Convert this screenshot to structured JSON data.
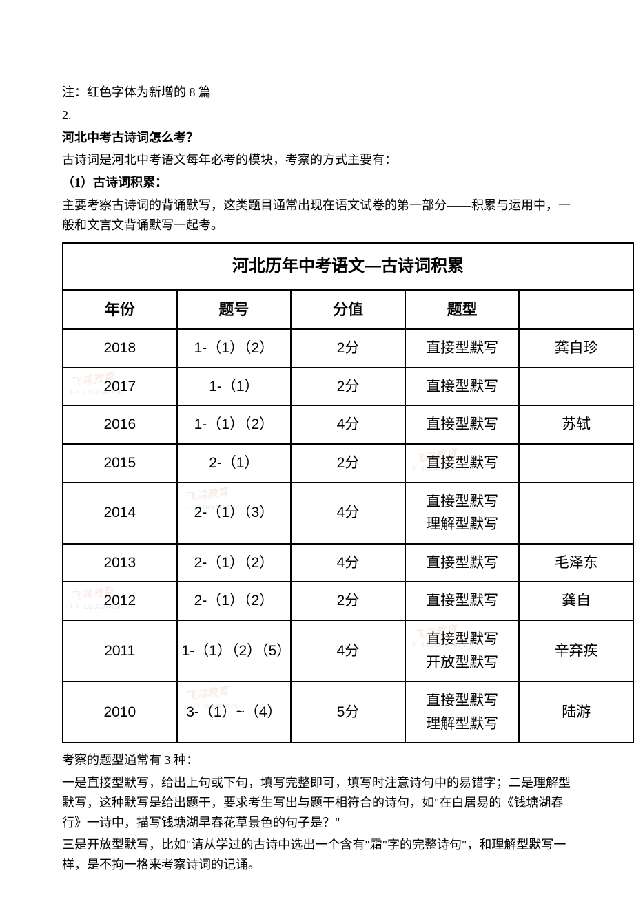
{
  "intro": {
    "note": "注：红色字体为新增的 8 篇",
    "num": "2.",
    "question": "河北中考古诗词怎么考？",
    "desc1": "古诗词是河北中考语文每年必考的模块，考察的方式主要有：",
    "sub1_title": "（1）古诗词积累：",
    "sub1_desc": "主要考察古诗词的背诵默写，这类题目通常出现在语文试卷的第一部分——积累与运用中，一般和文言文背诵默写一起考。"
  },
  "table": {
    "title": "河北历年中考语文—古诗词积累",
    "headers": {
      "year": "年份",
      "num": "题号",
      "score": "分值",
      "type": "题型",
      "last": ""
    },
    "rows": [
      {
        "year": "2018",
        "num": "1-（1）（2）",
        "score": "2分",
        "type": "直接型默写",
        "last": "龚自珍"
      },
      {
        "year": "2017",
        "num": "1-（1）",
        "score": "2分",
        "type": "直接型默写",
        "last": ""
      },
      {
        "year": "2016",
        "num": "1-（1）（2）",
        "score": "4分",
        "type": "直接型默写",
        "last": "苏轼"
      },
      {
        "year": "2015",
        "num": "2-（1）",
        "score": "2分",
        "type": "直接型默写",
        "last": ""
      },
      {
        "year": "2014",
        "num": "2-（1）（3）",
        "score": "4分",
        "type": "直接型默写\n理解型默写",
        "last": ""
      },
      {
        "year": "2013",
        "num": "2-（1）（2）",
        "score": "4分",
        "type": "直接型默写",
        "last": "毛泽东"
      },
      {
        "year": "2012",
        "num": "2-（1）（2）",
        "score": "2分",
        "type": "直接型默写",
        "last": "龚自"
      },
      {
        "year": "2011",
        "num": "1-（1）（2）（5）",
        "score": "4分",
        "type": "直接型默写\n开放型默写",
        "last": "辛弃疾"
      },
      {
        "year": "2010",
        "num": "3-（1）~（4）",
        "score": "5分",
        "type": "直接型默写\n理解型默写",
        "last": "陆游"
      }
    ]
  },
  "outro": {
    "line1": "考察的题型通常有 3 种：",
    "line2": "一是直接型默写，给出上句或下句，填写完整即可，填写时注意诗句中的易错字；二是理解型默写，这种默写是给出题干，要求考生写出与题干相符合的诗句，如\"在白居易的《钱塘湖春行》一诗中，描写钱塘湖早春花草景色的句子是？\"",
    "line3": "三是开放型默写，比如\"请从学过的古诗中选出一个含有\"霜\"字的完整诗句\"，和理解型默写一样，是不拘一格来考察诗词的记诵。"
  },
  "watermarks": [
    {
      "text": "飞鸿教育",
      "sub": "F·H EDUCATION"
    }
  ]
}
